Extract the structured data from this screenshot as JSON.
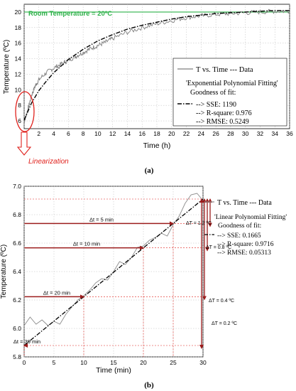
{
  "panel_a": {
    "ylabel": "Temperature (ºC)",
    "xlabel": "Time (h)",
    "caption": "(a)",
    "room_temp_label": "Room Temperature = 20ºC",
    "room_temp_value": 20,
    "linearization_label": "Linearization",
    "legend": {
      "data_label": "T  vs. Time --- Data",
      "fit_title": "'Exponential Polynomial Fitting'",
      "gof": "Goodness of fit:",
      "sse": "--> SSE: 1190",
      "rsq": "--> R-square: 0.976",
      "rmse": "--> RMSE: 0.5249"
    },
    "xticks": [
      "0",
      "2",
      "4",
      "6",
      "8",
      "10",
      "12",
      "14",
      "16",
      "18",
      "20",
      "22",
      "24",
      "26",
      "28",
      "30",
      "32",
      "34",
      "36"
    ],
    "yticks": [
      "6",
      "8",
      "10",
      "12",
      "14",
      "16",
      "18",
      "20"
    ],
    "colors": {
      "data": "#7f7f7f",
      "fit": "#000000",
      "room": "#2eb24a",
      "annotation": "#e0211c"
    }
  },
  "panel_b": {
    "ylabel": "Temperature (ºC)",
    "xlabel": "Time (min)",
    "caption": "(b)",
    "legend": {
      "data_label": "T  vs. Time --- Data",
      "fit_title": "'Linear Polynomial Fitting'",
      "gof": "Goodness of fit:",
      "sse": "--> SSE: 0.1665",
      "rsq": "--> R-square: 0.9716",
      "rmse": "--> RMSE: 0.05313"
    },
    "xticks": [
      "0",
      "5",
      "10",
      "15",
      "20",
      "25",
      "30"
    ],
    "yticks": [
      "5.8",
      "6.0",
      "6.2",
      "6.4",
      "6.6",
      "6.8",
      "7.0"
    ],
    "dt_labels": [
      "Δt = 30 min",
      "Δt = 20 min",
      "Δt = 10 min",
      "Δt = 5 min"
    ],
    "dT_labels": [
      "ΔT = 1.2 ºC",
      "ΔT = 0.8 ºC",
      "ΔT = 0.4 ºC",
      "ΔT = 0.2 ºC"
    ],
    "colors": {
      "data": "#8c8c8c",
      "fit": "#000000",
      "arrow": "#9c1c1c",
      "guide": "#e0211c"
    }
  },
  "chart_data": [
    {
      "type": "line",
      "xlabel": "Time (h)",
      "ylabel": "Temperature (ºC)",
      "xlim": [
        0,
        36
      ],
      "ylim": [
        5,
        21
      ],
      "series": [
        {
          "name": "T  vs. Time --- Data",
          "x": [
            0,
            0.3,
            0.6,
            1,
            1.5,
            2,
            3,
            4,
            5,
            6,
            7,
            8,
            9,
            10,
            11,
            12,
            14,
            16,
            18,
            20,
            22,
            24,
            26,
            28,
            30,
            32,
            34,
            36
          ],
          "y": [
            5.9,
            6.8,
            7.8,
            9.3,
            10.5,
            11.3,
            12.2,
            12.8,
            13.3,
            13.8,
            14.3,
            14.8,
            15.3,
            15.7,
            16.1,
            16.6,
            17.4,
            18.0,
            18.5,
            18.9,
            19.3,
            19.5,
            19.7,
            19.8,
            19.9,
            20.0,
            20.1,
            20.1
          ]
        },
        {
          "name": "'Exponential Polynomial Fitting'",
          "x": [
            0,
            1,
            2,
            3,
            4,
            6,
            8,
            10,
            12,
            14,
            16,
            18,
            20,
            22,
            24,
            26,
            28,
            30,
            32,
            34,
            36
          ],
          "y": [
            6.1,
            8.3,
            9.9,
            11.1,
            12.2,
            13.9,
            15.2,
            16.3,
            17.1,
            17.8,
            18.3,
            18.7,
            19.1,
            19.4,
            19.6,
            19.8,
            19.9,
            20.0,
            20.1,
            20.2,
            20.2
          ]
        }
      ]
    },
    {
      "type": "line",
      "xlabel": "Time (min)",
      "ylabel": "Temperature (ºC)",
      "xlim": [
        0,
        30
      ],
      "ylim": [
        5.8,
        7.0
      ],
      "series": [
        {
          "name": "T  vs. Time --- Data",
          "x": [
            0,
            1,
            2,
            3,
            4,
            5,
            6,
            7,
            8,
            9,
            10,
            11,
            12,
            13,
            14,
            15,
            16,
            17,
            18,
            19,
            20,
            21,
            22,
            23,
            24,
            25,
            26,
            27,
            28,
            29,
            30
          ],
          "y": [
            6.02,
            6.08,
            6.03,
            6.06,
            6.02,
            6.05,
            6.03,
            6.1,
            6.15,
            6.2,
            6.23,
            6.27,
            6.32,
            6.35,
            6.34,
            6.4,
            6.47,
            6.45,
            6.5,
            6.57,
            6.58,
            6.62,
            6.64,
            6.67,
            6.65,
            6.73,
            6.79,
            6.88,
            6.94,
            6.95,
            6.9
          ]
        },
        {
          "name": "'Linear Polynomial Fitting'",
          "x": [
            0,
            30
          ],
          "y": [
            5.88,
            6.91
          ]
        }
      ]
    }
  ]
}
